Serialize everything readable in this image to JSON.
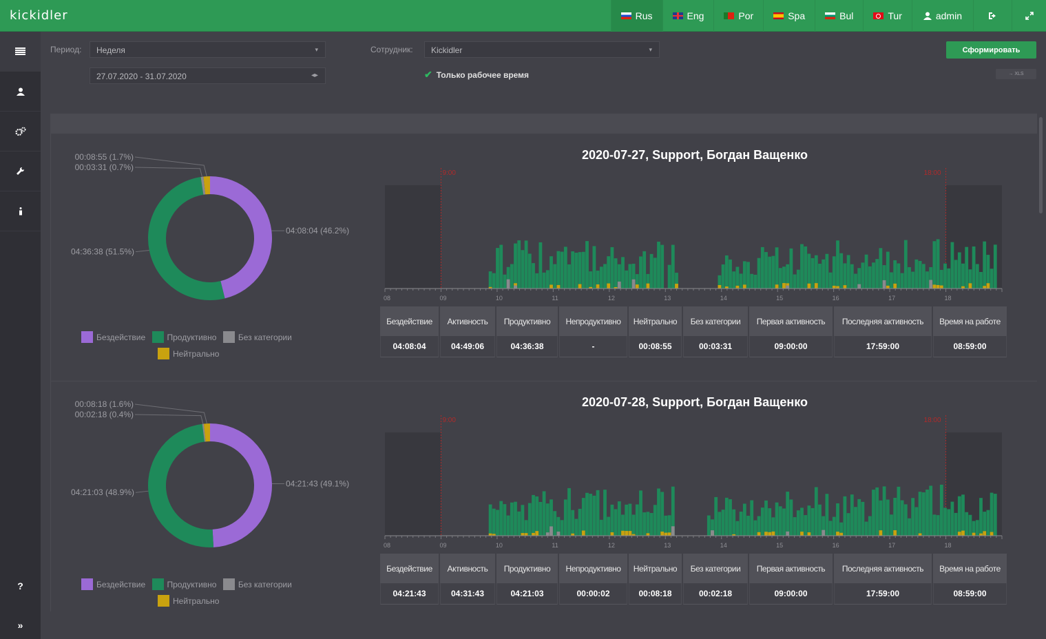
{
  "app": {
    "logo": "kickidler"
  },
  "nav": {
    "languages": [
      {
        "label": "Rus",
        "flag": "flag-ru"
      },
      {
        "label": "Eng",
        "flag": "flag-en"
      },
      {
        "label": "Por",
        "flag": "flag-pt"
      },
      {
        "label": "Spa",
        "flag": "flag-es"
      },
      {
        "label": "Bul",
        "flag": "flag-bg"
      },
      {
        "label": "Tur",
        "flag": "flag-tr"
      }
    ],
    "user": "admin",
    "icons": [
      "logout-icon",
      "fullscreen-icon"
    ]
  },
  "sidebar": {
    "items": [
      "menu-icon",
      "user-icon",
      "settings-icon",
      "wrench-icon",
      "info-icon"
    ],
    "help": "?",
    "expand": "»"
  },
  "filters": {
    "period_label": "Период:",
    "period_value": "Неделя",
    "date_range": "27.07.2020 - 31.07.2020",
    "employee_label": "Сотрудник:",
    "employee_value": "Kickidler",
    "only_work_time": "Только рабочее время",
    "generate_button": "Сформировать",
    "xls_button": "→ XLS"
  },
  "colors": {
    "idle": "#9b6ad6",
    "productive": "#1e8a5a",
    "uncategorized": "#8a8a8e",
    "neutral": "#c9a20f",
    "accent": "#2e9a55"
  },
  "legend": [
    {
      "label": "Бездействие",
      "color": "#9b6ad6"
    },
    {
      "label": "Продуктивно",
      "color": "#1e8a5a"
    },
    {
      "label": "Без категории",
      "color": "#8a8a8e"
    },
    {
      "label": "Нейтрально",
      "color": "#c9a20f"
    }
  ],
  "table_headers": [
    "Бездействие",
    "Активность",
    "Продуктивно",
    "Непродуктивно",
    "Нейтрально",
    "Без категории",
    "Первая активность",
    "Последняя активность",
    "Время на работе"
  ],
  "reports": [
    {
      "title": "2020-07-27, Support, Богдан Ващенко",
      "values": [
        "04:08:04",
        "04:49:06",
        "04:36:38",
        "-",
        "00:08:55",
        "00:03:31",
        "09:00:00",
        "17:59:00",
        "08:59:00"
      ],
      "donut_labels": {
        "neutral": "00:08:55 (1.7%)",
        "uncategorized": "00:03:31 (0.7%)",
        "idle": "04:08:04 (46.2%)",
        "productive": "04:36:38 (51.5%)"
      },
      "marker_start": "9:00",
      "marker_end": "18:00"
    },
    {
      "title": "2020-07-28, Support, Богдан Ващенко",
      "values": [
        "04:21:43",
        "04:31:43",
        "04:21:03",
        "00:00:02",
        "00:08:18",
        "00:02:18",
        "09:00:00",
        "17:59:00",
        "08:59:00"
      ],
      "donut_labels": {
        "neutral": "00:08:18 (1.6%)",
        "uncategorized": "00:02:18 (0.4%)",
        "idle": "04:21:43 (49.1%)",
        "productive": "04:21:03 (48.9%)"
      },
      "marker_start": "9:00",
      "marker_end": "18:00"
    }
  ],
  "chart_data": [
    {
      "type": "pie",
      "title": "2020-07-27, Support, Богдан Ващенко",
      "categories": [
        "Бездействие",
        "Продуктивно",
        "Без категории",
        "Нейтрально"
      ],
      "values": [
        46.2,
        51.5,
        0.7,
        1.7
      ]
    },
    {
      "type": "pie",
      "title": "2020-07-28, Support, Богдан Ващенко",
      "categories": [
        "Бездействие",
        "Продуктивно",
        "Без категории",
        "Нейтрально"
      ],
      "values": [
        49.1,
        48.9,
        0.4,
        1.6
      ]
    },
    {
      "type": "bar",
      "title": "2020-07-27, Support, Богдан Ващенко",
      "x_ticks": [
        "08",
        "09",
        "10",
        "11",
        "12",
        "13",
        "14",
        "15",
        "16",
        "17",
        "18"
      ]
    },
    {
      "type": "bar",
      "title": "2020-07-28, Support, Богдан Ващенко",
      "x_ticks": [
        "08",
        "09",
        "10",
        "11",
        "12",
        "13",
        "14",
        "15",
        "16",
        "17",
        "18"
      ]
    }
  ]
}
